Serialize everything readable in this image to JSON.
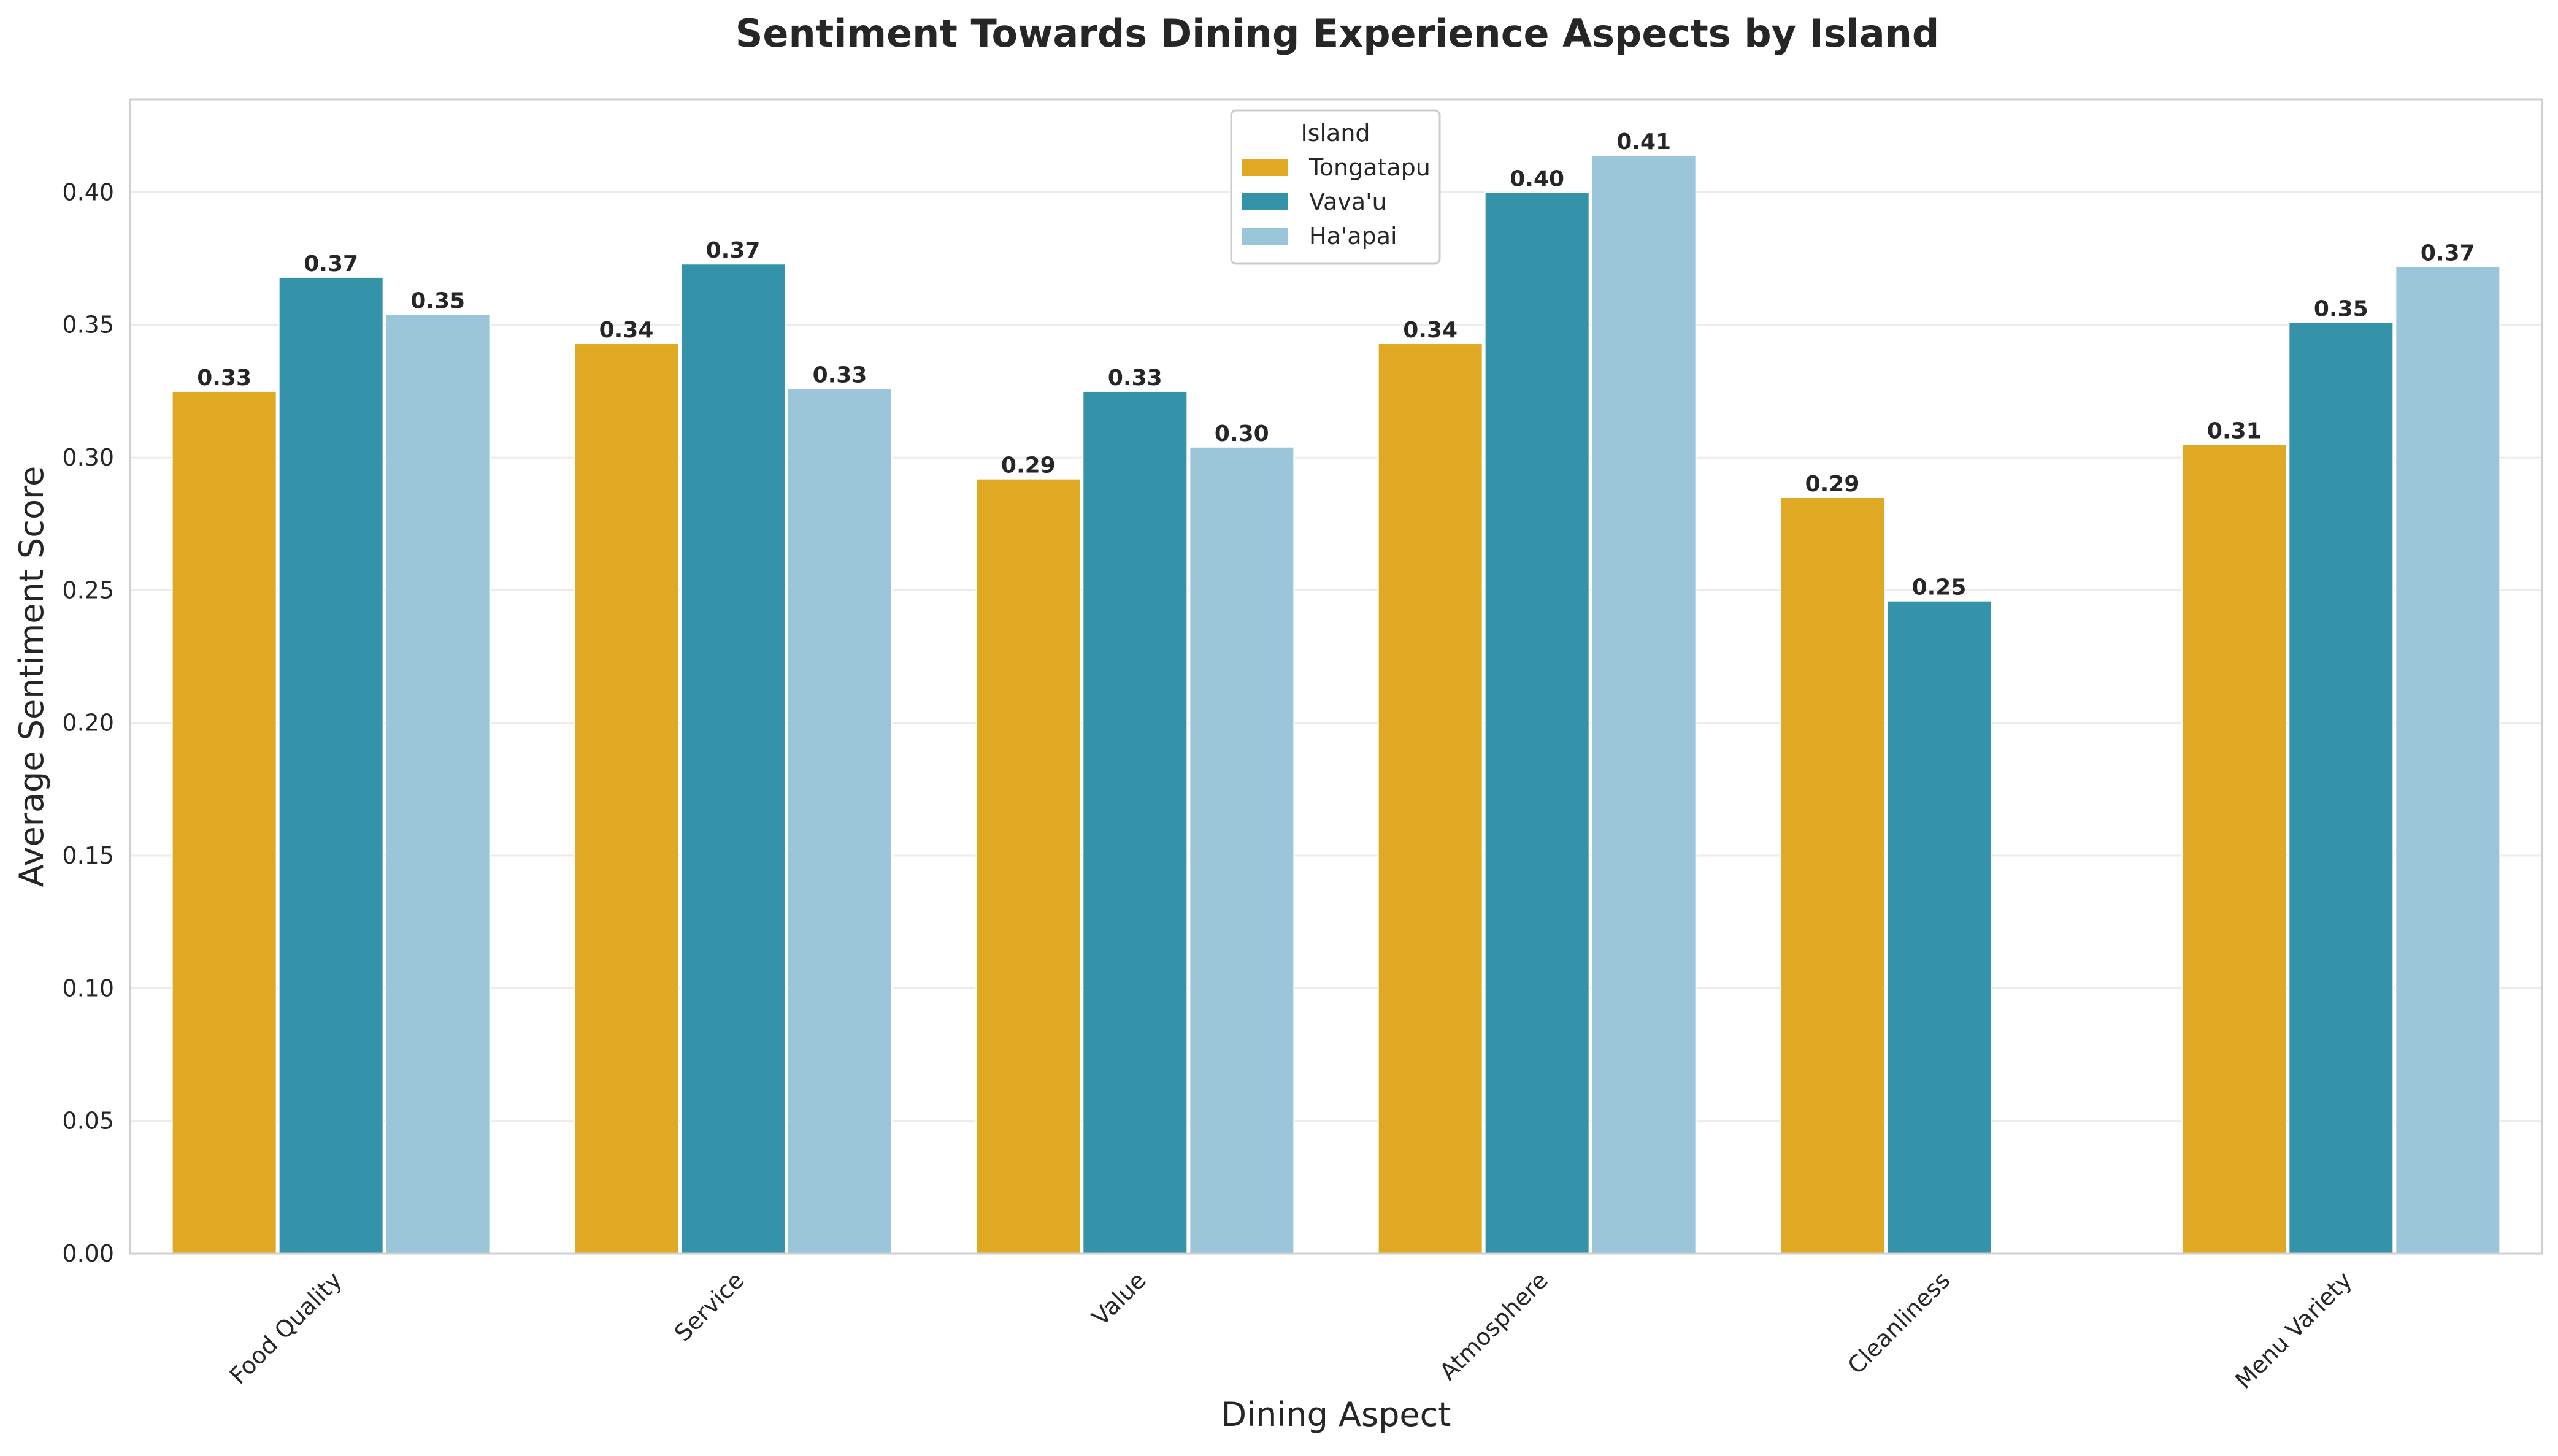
{
  "chart_data": {
    "type": "bar",
    "title": "Sentiment Towards Dining Experience Aspects by Island",
    "xlabel": "Dining Aspect",
    "ylabel": "Average Sentiment Score",
    "categories": [
      "Food Quality",
      "Service",
      "Value",
      "Atmosphere",
      "Cleanliness",
      "Menu Variety"
    ],
    "series": [
      {
        "name": "Tongatapu",
        "color": "#E0A924",
        "values": [
          0.325,
          0.343,
          0.292,
          0.343,
          0.285,
          0.305
        ],
        "labels": [
          "0.33",
          "0.34",
          "0.29",
          "0.34",
          "0.29",
          "0.31"
        ]
      },
      {
        "name": "Vava'u",
        "color": "#3492A9",
        "values": [
          0.368,
          0.373,
          0.325,
          0.4,
          0.246,
          0.351
        ],
        "labels": [
          "0.37",
          "0.37",
          "0.33",
          "0.40",
          "0.25",
          "0.35"
        ]
      },
      {
        "name": "Ha'apai",
        "color": "#9BC6DA",
        "values": [
          0.354,
          0.326,
          0.304,
          0.414,
          null,
          0.372
        ],
        "labels": [
          "0.35",
          "0.33",
          "0.30",
          "0.41",
          "",
          "0.37"
        ]
      }
    ],
    "ylim": [
      0,
      0.435
    ],
    "yticks": [
      "0.00",
      "0.05",
      "0.10",
      "0.15",
      "0.20",
      "0.25",
      "0.30",
      "0.35",
      "0.40"
    ],
    "grid": "y",
    "legend": {
      "title": "Island",
      "placement": "top-center"
    }
  }
}
